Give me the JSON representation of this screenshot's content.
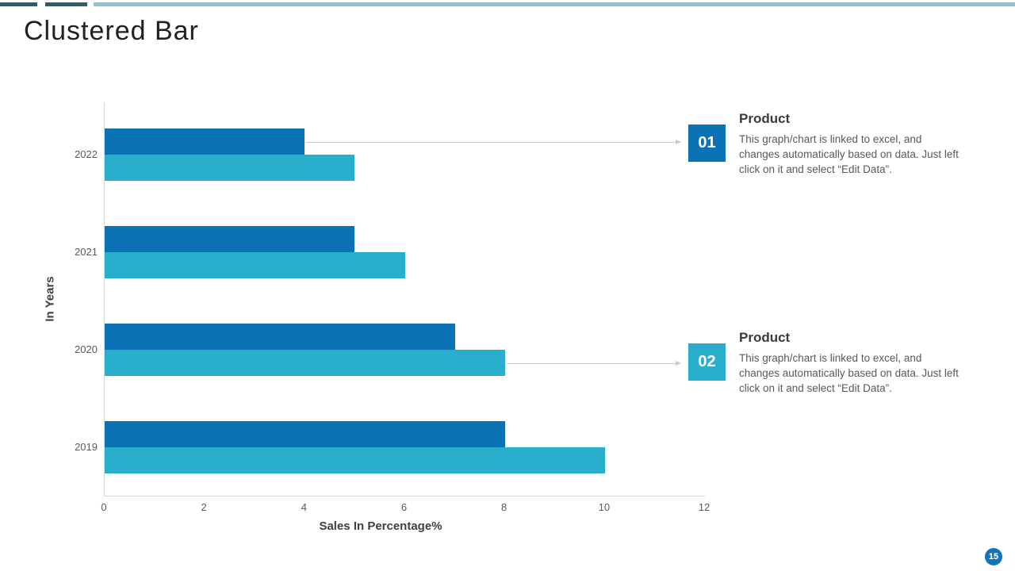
{
  "slide": {
    "title": "Clustered Bar",
    "page_number": "15"
  },
  "colors": {
    "series1": "#0b72b5",
    "series2": "#29aecb",
    "accent_dark_teal": "#2d5f6b",
    "accent_light_teal": "#8ac4d1",
    "axis_line": "#d6d6d6",
    "arrow": "#c9c9c9",
    "page_badge": "#1374bc"
  },
  "chart_data": {
    "type": "bar",
    "orientation": "horizontal",
    "title": "Clustered Bar",
    "categories": [
      "2022",
      "2021",
      "2020",
      "2019"
    ],
    "series": [
      {
        "name": "Product 01",
        "color": "#0b72b5",
        "values": [
          4,
          5,
          7,
          8
        ]
      },
      {
        "name": "Product 02",
        "color": "#29aecb",
        "values": [
          5,
          6,
          8,
          10
        ]
      }
    ],
    "xlabel": "Sales In Percentage%",
    "ylabel": "In Years",
    "xlim": [
      0,
      12
    ],
    "xticks": [
      0,
      2,
      4,
      6,
      8,
      10,
      12
    ],
    "grid": false,
    "legend": false
  },
  "connectors": [
    {
      "category_index": 0,
      "series_index": 0,
      "target": "callout-01"
    },
    {
      "category_index": 2,
      "series_index": 1,
      "target": "callout-02"
    }
  ],
  "callouts": [
    {
      "number": "01",
      "color": "#0b72b5",
      "heading": "Product",
      "body": "This graph/chart is linked to excel, and changes automatically based on data. Just left click on it and select “Edit Data”."
    },
    {
      "number": "02",
      "color": "#29aecb",
      "heading": "Product",
      "body": "This graph/chart is linked to excel, and changes automatically based on data. Just left click on it and select “Edit Data”."
    }
  ]
}
